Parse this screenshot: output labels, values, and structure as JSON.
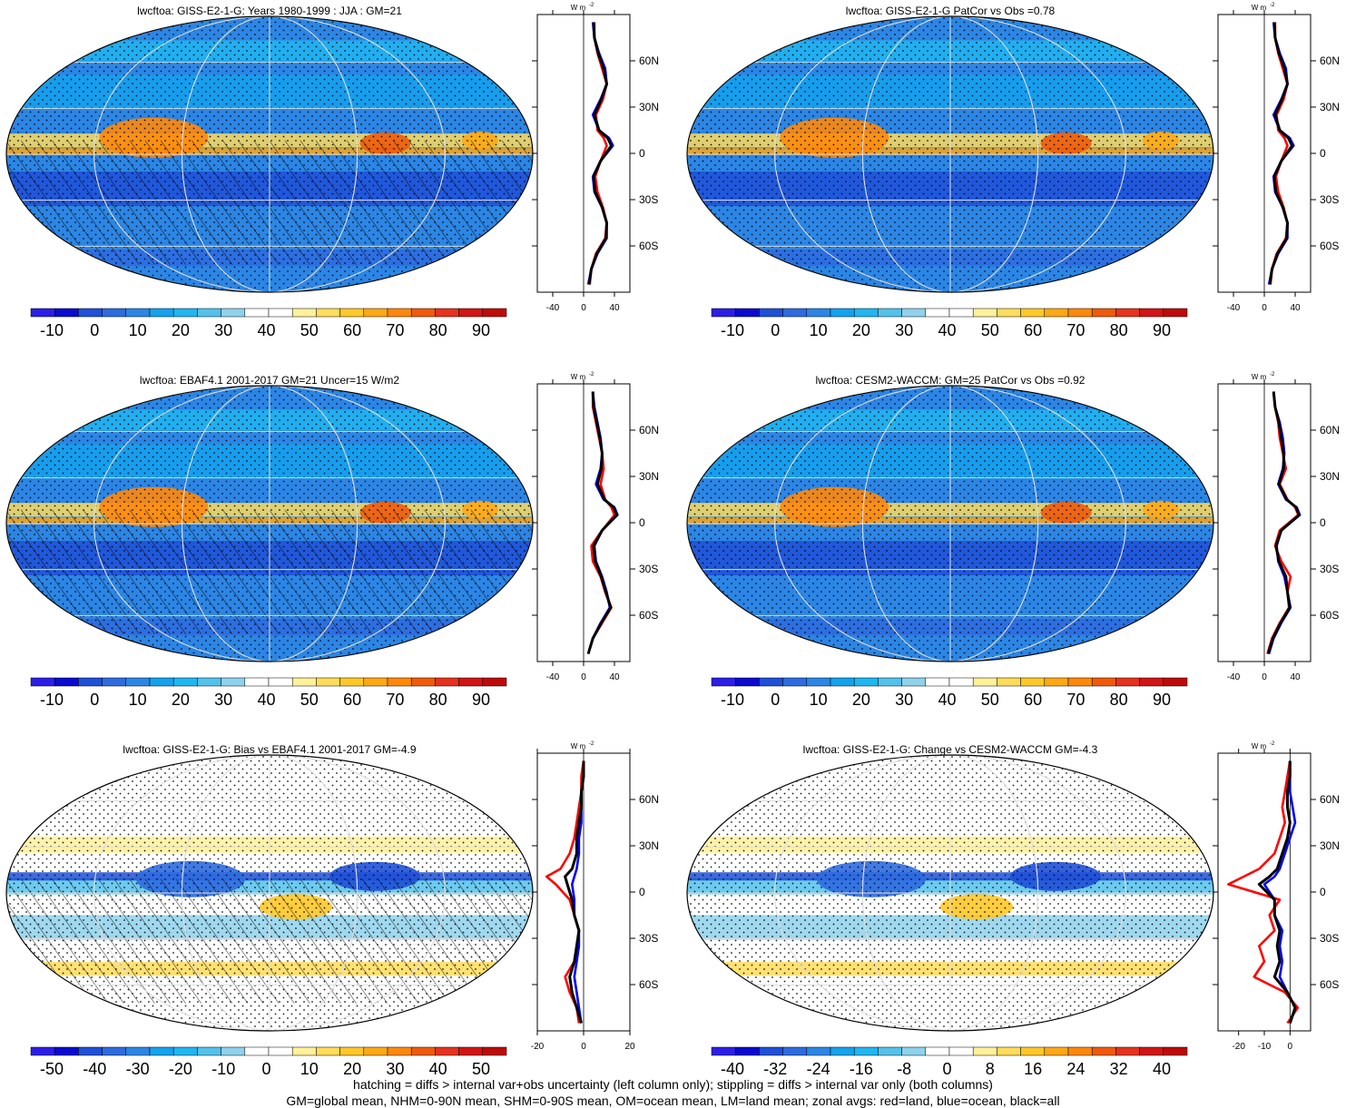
{
  "colors": {
    "land": "#ff0000",
    "ocean": "#0000ff",
    "all": "#000000",
    "palette": [
      "#2c1ee8",
      "#0a0ad0",
      "#1e50d8",
      "#2d6be0",
      "#2b86e6",
      "#13a2ee",
      "#1fb6f2",
      "#52c2ec",
      "#8ed2ec",
      "#ffffff",
      "#ffffff",
      "#fff09a",
      "#ffdc5a",
      "#ffc828",
      "#ffa814",
      "#ff880a",
      "#f05a0a",
      "#e6321e",
      "#d21414",
      "#be0a0a"
    ]
  },
  "unit_label": "W m",
  "unit_exp": "-2",
  "lat_labels": [
    "60N",
    "30N",
    "0",
    "30S",
    "60S"
  ],
  "footer": {
    "line1": "hatching = diffs > internal var+obs uncertainty (left column only); stippling = diffs > internal var only (both columns)",
    "line2": "GM=global mean, NHM=0-90N mean, SHM=0-90S mean, OM=ocean mean, LM=land mean; zonal avgs: red=land, blue=ocean, black=all"
  },
  "chart_data": [
    {
      "type": "heatmap",
      "title": "lwcftoa: GISS-E2-1-G: Years 1980-1999 : JJA : GM=21",
      "colorbar_ticks": [
        "-10",
        "0",
        "10",
        "20",
        "30",
        "40",
        "50",
        "60",
        "70",
        "80",
        "90"
      ],
      "profile_xticks": [
        "-40",
        "0",
        "40"
      ],
      "profile_xlim": [
        -60,
        60
      ],
      "ylim": [
        -90,
        90
      ],
      "lat": [
        -85,
        -75,
        -65,
        -55,
        -45,
        -35,
        -25,
        -15,
        -5,
        5,
        10,
        15,
        25,
        35,
        45,
        55,
        65,
        75,
        85
      ],
      "series": [
        {
          "name": "land",
          "values": [
            8,
            10,
            16,
            28,
            30,
            25,
            18,
            15,
            22,
            30,
            26,
            18,
            16,
            25,
            30,
            24,
            18,
            14,
            14
          ]
        },
        {
          "name": "ocean",
          "values": [
            6,
            10,
            18,
            30,
            30,
            24,
            14,
            12,
            22,
            38,
            33,
            20,
            12,
            22,
            30,
            28,
            20,
            14,
            12
          ]
        },
        {
          "name": "all",
          "values": [
            7,
            10,
            17,
            29,
            30,
            24,
            15,
            13,
            22,
            36,
            31,
            20,
            14,
            23,
            30,
            26,
            19,
            14,
            13
          ]
        }
      ]
    },
    {
      "type": "heatmap",
      "title": "lwcftoa: GISS-E2-1-G PatCor vs Obs =0.78",
      "colorbar_ticks": [
        "-10",
        "0",
        "10",
        "20",
        "30",
        "40",
        "50",
        "60",
        "70",
        "80",
        "90"
      ],
      "profile_xticks": [
        "-40",
        "0",
        "40"
      ],
      "profile_xlim": [
        -60,
        60
      ],
      "ylim": [
        -90,
        90
      ],
      "lat": [
        -85,
        -75,
        -65,
        -55,
        -45,
        -35,
        -25,
        -15,
        -5,
        5,
        10,
        15,
        25,
        35,
        45,
        55,
        65,
        75,
        85
      ],
      "series": [
        {
          "name": "land",
          "values": [
            8,
            10,
            16,
            28,
            30,
            25,
            18,
            15,
            22,
            30,
            26,
            18,
            16,
            25,
            30,
            24,
            18,
            14,
            14
          ]
        },
        {
          "name": "ocean",
          "values": [
            6,
            10,
            18,
            30,
            30,
            24,
            14,
            12,
            22,
            38,
            33,
            20,
            12,
            22,
            30,
            28,
            20,
            14,
            12
          ]
        },
        {
          "name": "all",
          "values": [
            7,
            10,
            17,
            29,
            30,
            24,
            15,
            13,
            22,
            36,
            31,
            20,
            14,
            23,
            30,
            26,
            19,
            14,
            13
          ]
        }
      ]
    },
    {
      "type": "heatmap",
      "title": "lwcftoa: EBAF4.1 2001-2017 GM=21 Uncer=15 W/m2",
      "colorbar_ticks": [
        "-10",
        "0",
        "10",
        "20",
        "30",
        "40",
        "50",
        "60",
        "70",
        "80",
        "90"
      ],
      "profile_xticks": [
        "-40",
        "0",
        "40"
      ],
      "profile_xlim": [
        -60,
        60
      ],
      "ylim": [
        -90,
        90
      ],
      "lat": [
        -85,
        -75,
        -65,
        -55,
        -45,
        -35,
        -25,
        -15,
        -5,
        5,
        10,
        15,
        25,
        35,
        45,
        55,
        65,
        75,
        85
      ],
      "series": [
        {
          "name": "land",
          "values": [
            6,
            12,
            24,
            36,
            28,
            22,
            12,
            10,
            24,
            40,
            36,
            28,
            22,
            26,
            24,
            20,
            16,
            12,
            12
          ]
        },
        {
          "name": "ocean",
          "values": [
            6,
            12,
            22,
            34,
            30,
            24,
            16,
            14,
            24,
            44,
            40,
            26,
            16,
            22,
            24,
            22,
            18,
            14,
            12
          ]
        },
        {
          "name": "all",
          "values": [
            6,
            12,
            23,
            35,
            29,
            23,
            15,
            13,
            24,
            43,
            39,
            27,
            18,
            23,
            24,
            21,
            17,
            13,
            12
          ]
        }
      ]
    },
    {
      "type": "heatmap",
      "title": "lwcftoa: CESM2-WACCM: GM=25 PatCor vs Obs =0.92",
      "colorbar_ticks": [
        "-10",
        "0",
        "10",
        "20",
        "30",
        "40",
        "50",
        "60",
        "70",
        "80",
        "90"
      ],
      "profile_xticks": [
        "-40",
        "0",
        "40"
      ],
      "profile_xlim": [
        -60,
        60
      ],
      "ylim": [
        -90,
        90
      ],
      "lat": [
        -85,
        -75,
        -65,
        -55,
        -45,
        -35,
        -25,
        -15,
        -5,
        5,
        10,
        15,
        25,
        35,
        45,
        55,
        65,
        75,
        85
      ],
      "series": [
        {
          "name": "land",
          "values": [
            4,
            10,
            20,
            32,
            30,
            34,
            22,
            14,
            20,
            44,
            40,
            30,
            20,
            28,
            24,
            20,
            18,
            14,
            12
          ]
        },
        {
          "name": "ocean",
          "values": [
            6,
            12,
            22,
            34,
            30,
            26,
            18,
            16,
            22,
            46,
            42,
            28,
            18,
            24,
            26,
            24,
            20,
            14,
            12
          ]
        },
        {
          "name": "all",
          "values": [
            5,
            11,
            21,
            33,
            30,
            28,
            19,
            15,
            22,
            45,
            41,
            29,
            19,
            25,
            25,
            22,
            19,
            14,
            12
          ]
        }
      ]
    },
    {
      "type": "heatmap",
      "title": "lwcftoa: GISS-E2-1-G: Bias vs EBAF4.1 2001-2017 GM=-4.9",
      "colorbar_ticks": [
        "-50",
        "-40",
        "-30",
        "-20",
        "-10",
        "0",
        "10",
        "20",
        "30",
        "40",
        "50"
      ],
      "profile_xticks": [
        "-20",
        "0",
        "20"
      ],
      "profile_xlim": [
        -20,
        20
      ],
      "ylim": [
        -90,
        90
      ],
      "lat": [
        -85,
        -75,
        -65,
        -55,
        -45,
        -35,
        -25,
        -15,
        -5,
        5,
        10,
        15,
        25,
        35,
        45,
        55,
        65,
        75,
        85
      ],
      "series": [
        {
          "name": "land",
          "values": [
            -2,
            -3,
            -6,
            -8,
            -4,
            -3,
            -2,
            -4,
            -6,
            -12,
            -16,
            -10,
            -6,
            -4,
            -3,
            -2,
            -1,
            -1,
            0
          ]
        },
        {
          "name": "ocean",
          "values": [
            -1,
            -2,
            -3,
            -4,
            -3,
            -2,
            -2,
            -4,
            -4,
            -5,
            -4,
            -3,
            -2,
            -2,
            -1,
            -1,
            -1,
            0,
            0
          ]
        },
        {
          "name": "all",
          "values": [
            -1,
            -3,
            -5,
            -6,
            -4,
            -3,
            -2,
            -4,
            -5,
            -7,
            -8,
            -5,
            -3,
            -3,
            -2,
            -1,
            -1,
            0,
            0
          ]
        }
      ]
    },
    {
      "type": "heatmap",
      "title": "lwcftoa: GISS-E2-1-G: Change vs CESM2-WACCM GM=-4.3",
      "colorbar_ticks": [
        "-40",
        "-32",
        "-24",
        "-16",
        "-8",
        "0",
        "8",
        "16",
        "24",
        "32",
        "40"
      ],
      "profile_xticks": [
        "-20",
        "-10",
        "0"
      ],
      "profile_xlim": [
        -28,
        8
      ],
      "ylim": [
        -90,
        90
      ],
      "lat": [
        -85,
        -75,
        -65,
        -55,
        -45,
        -35,
        -25,
        -15,
        -5,
        5,
        10,
        15,
        25,
        35,
        45,
        55,
        65,
        75,
        85
      ],
      "series": [
        {
          "name": "land",
          "values": [
            -1,
            3,
            -2,
            -14,
            -10,
            -12,
            -6,
            -8,
            -4,
            -24,
            -18,
            -12,
            -6,
            -4,
            -2,
            -3,
            -2,
            -1,
            0
          ]
        },
        {
          "name": "ocean",
          "values": [
            0,
            2,
            -1,
            -4,
            -3,
            -4,
            -3,
            -6,
            -6,
            -10,
            -6,
            -4,
            -2,
            0,
            2,
            1,
            0,
            0,
            0
          ]
        },
        {
          "name": "all",
          "values": [
            0,
            2,
            -1,
            -6,
            -4,
            -5,
            -4,
            -6,
            -6,
            -12,
            -8,
            -5,
            -3,
            -1,
            0,
            -1,
            -1,
            0,
            0
          ]
        }
      ]
    }
  ]
}
